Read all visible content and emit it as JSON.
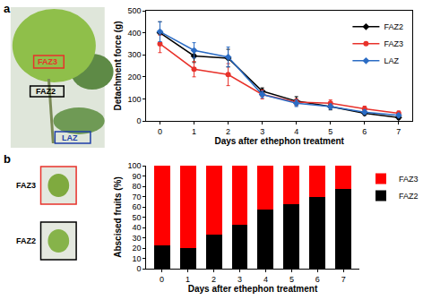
{
  "panel_labels": [
    "a",
    "b"
  ],
  "photo_labels": {
    "a": [
      {
        "text": "FAZ3",
        "color": "#e8322b"
      },
      {
        "text": "FAZ2",
        "color": "#000000"
      },
      {
        "text": "LAZ",
        "color": "#1f3fa8"
      }
    ],
    "b": [
      {
        "text": "FAZ3",
        "color": "#e8322b"
      },
      {
        "text": "FAZ2",
        "color": "#000000"
      }
    ]
  },
  "chart_data": [
    {
      "type": "line",
      "x_label": "Days after ethephon treatment",
      "y_label": "Detachment force (g)",
      "x": [
        0,
        1,
        2,
        3,
        4,
        5,
        6,
        7
      ],
      "series": [
        {
          "name": "FAZ2",
          "color": "#000000",
          "marker": "diamond",
          "values": [
            400,
            295,
            285,
            135,
            90,
            65,
            35,
            15
          ],
          "errors": [
            50,
            30,
            40,
            15,
            20,
            15,
            10,
            8
          ]
        },
        {
          "name": "FAZ3",
          "color": "#e8322b",
          "marker": "circle",
          "values": [
            350,
            235,
            210,
            120,
            85,
            80,
            55,
            35
          ],
          "errors": [
            40,
            35,
            50,
            20,
            15,
            15,
            12,
            10
          ]
        },
        {
          "name": "LAZ",
          "color": "#2b6cc4",
          "marker": "diamond",
          "values": [
            405,
            320,
            290,
            120,
            80,
            65,
            40,
            25
          ],
          "errors": [
            45,
            35,
            45,
            15,
            15,
            12,
            10,
            8
          ]
        }
      ],
      "xlim": [
        -0.4,
        7.4
      ],
      "xticks": [
        0,
        1,
        2,
        3,
        4,
        5,
        6,
        7
      ],
      "ylim": [
        0,
        500
      ],
      "yticks": [
        0,
        100,
        200,
        300,
        400,
        500
      ],
      "grid": false,
      "legend": "upper right"
    },
    {
      "type": "bar",
      "x_label": "Days after ethephon treatment",
      "y_label": "Abscised fruits (%)",
      "x": [
        0,
        1,
        2,
        3,
        4,
        5,
        6,
        7
      ],
      "series": [
        {
          "name": "FAZ2",
          "color": "#000000",
          "values": [
            23,
            20,
            33,
            43,
            57,
            63,
            70,
            77
          ]
        },
        {
          "name": "FAZ3",
          "color": "#ff0000",
          "values": [
            77,
            80,
            67,
            57,
            43,
            37,
            30,
            23
          ]
        }
      ],
      "xlim": [
        -0.6,
        7.6
      ],
      "xticks": [
        0,
        1,
        2,
        3,
        4,
        5,
        6,
        7
      ],
      "ylim": [
        0,
        100
      ],
      "yticks": [
        0,
        10,
        20,
        30,
        40,
        50,
        60,
        70,
        80,
        90,
        100
      ],
      "stacked": true,
      "grid": false,
      "legend": "right"
    }
  ]
}
